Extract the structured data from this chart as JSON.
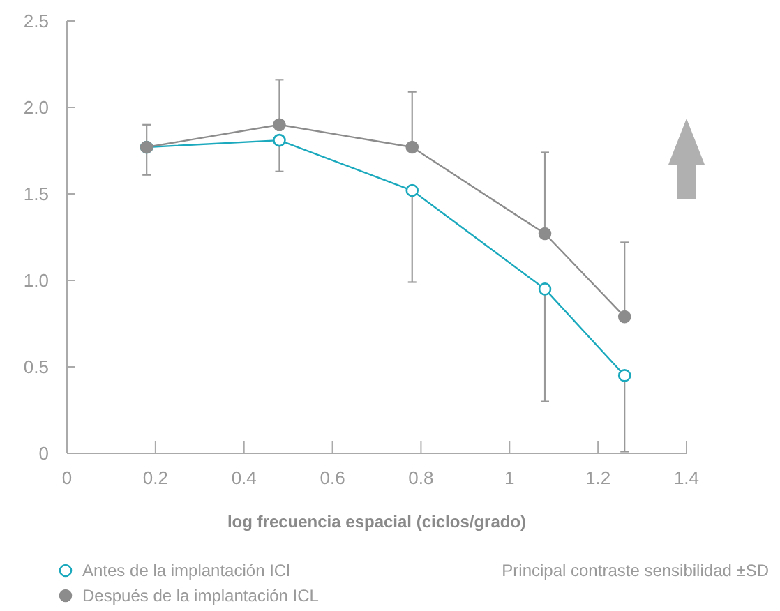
{
  "chart_data": {
    "type": "line",
    "xlabel": "log frecuencia espacial (ciclos/grado)",
    "x": [
      0.18,
      0.48,
      0.78,
      1.08,
      1.26
    ],
    "series": [
      {
        "name": "Antes de la implantación ICl",
        "color": "#1ba9bd",
        "values": [
          1.77,
          1.81,
          1.52,
          0.95,
          0.45
        ],
        "errors": [
          null,
          [
            1.63,
            1.81
          ],
          [
            0.99,
            1.52
          ],
          [
            0.3,
            0.95
          ],
          [
            0.01,
            0.45
          ]
        ]
      },
      {
        "name": "Después de la implantación ICL",
        "color": "#8c8c8c",
        "values": [
          1.77,
          1.9,
          1.77,
          1.27,
          0.79
        ],
        "errors": [
          [
            1.61,
            1.9
          ],
          [
            1.9,
            2.16
          ],
          [
            1.77,
            2.09
          ],
          [
            1.27,
            1.74
          ],
          [
            0.79,
            1.22
          ]
        ]
      }
    ],
    "xlim": [
      0,
      1.4
    ],
    "xticks": [
      0,
      0.2,
      0.4,
      0.6,
      0.8,
      1,
      1.2,
      1.4
    ],
    "ylim": [
      0,
      2.5
    ],
    "yticks": [
      0,
      {
        "value": 0.5,
        "label": "0.5"
      },
      {
        "value": 1,
        "label": "1.0"
      },
      {
        "value": 1.5,
        "label": "1.5"
      },
      {
        "value": 2,
        "label": "2.0"
      },
      {
        "value": 2.5,
        "label": "2.5"
      }
    ],
    "marker": "circle",
    "legend": "bottom left",
    "annotations": [
      "Principal contraste sensibilidad ±SD"
    ]
  }
}
